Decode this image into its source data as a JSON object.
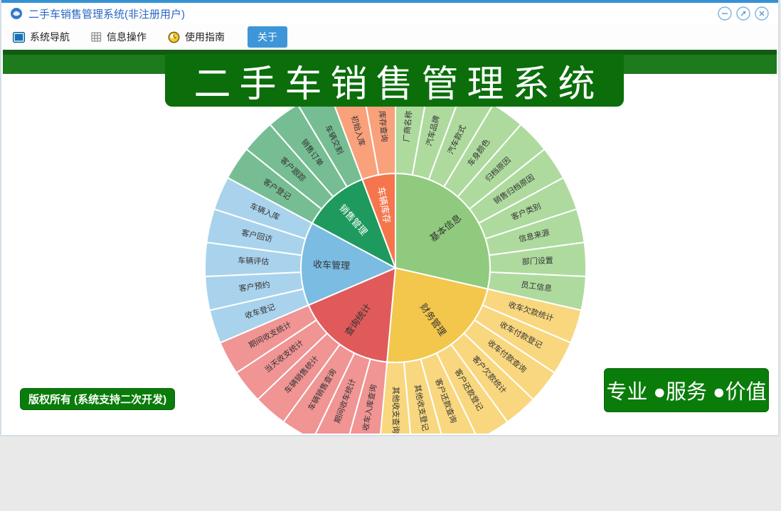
{
  "window": {
    "title": "二手车销售管理系统(非注册用户)"
  },
  "toolbar": {
    "items": [
      {
        "label": "系统导航"
      },
      {
        "label": "信息操作"
      },
      {
        "label": "使用指南"
      },
      {
        "label": "关于"
      }
    ]
  },
  "banner": {
    "title": "二手车销售管理系统"
  },
  "badges": {
    "copyright": "版权所有 (系统支持二次开发)",
    "slogan": "专业 ●服务 ●价值"
  },
  "chart_data": {
    "type": "sunburst",
    "title": "二手车销售管理系统",
    "center": [
      552,
      307
    ],
    "inner_radius": 133,
    "outer_radius": 268,
    "sector_label_radius": 90,
    "leaf_label_radius": 200,
    "sector_font_size": 13,
    "leaf_font_size": 11,
    "leaf_label_color": "#333333",
    "start_angle_deg": 0,
    "clockwise": true,
    "sectors": [
      {
        "name": "基本信息",
        "color": "#90ca7e",
        "child_color": "#aeda9e",
        "label_color": "#333333",
        "children": [
          "厂商名称",
          "汽车品牌",
          "汽车款式",
          "车身颜色",
          "归档原因",
          "销售归档原因",
          "客户类别",
          "信息来源",
          "部门设置",
          "员工信息"
        ]
      },
      {
        "name": "财务管理",
        "color": "#f3c64c",
        "child_color": "#f8d77f",
        "label_color": "#333333",
        "children": [
          "收车欠款统计",
          "收车付款登记",
          "收车付款查询",
          "客户欠款统计",
          "客户还款登记",
          "客户还款查询",
          "其他收支登记",
          "其他收支查询"
        ]
      },
      {
        "name": "查询统计",
        "color": "#e05a5a",
        "child_color": "#f09494",
        "label_color": "#333333",
        "children": [
          "收车入库查询",
          "期间收车统计",
          "车辆销售查询",
          "车辆销售统计",
          "当天收支统计",
          "期间收支统计"
        ]
      },
      {
        "name": "收车管理",
        "color": "#7abce2",
        "child_color": "#a9d3ec",
        "label_color": "#333333",
        "children": [
          "收车登记",
          "客户预约",
          "车辆评估",
          "客户回访",
          "车辆入库"
        ]
      },
      {
        "name": "销售管理",
        "color": "#1f9a5f",
        "child_color": "#77bd93",
        "label_color": "#ffffff",
        "children": [
          "客户登记",
          "客户跟踪",
          "销售订单",
          "车辆交割"
        ]
      },
      {
        "name": "车辆库存",
        "color": "#f5764d",
        "child_color": "#f9a17b",
        "label_color": "#ffffff",
        "children": [
          "初始入库",
          "库存查询"
        ]
      }
    ]
  }
}
